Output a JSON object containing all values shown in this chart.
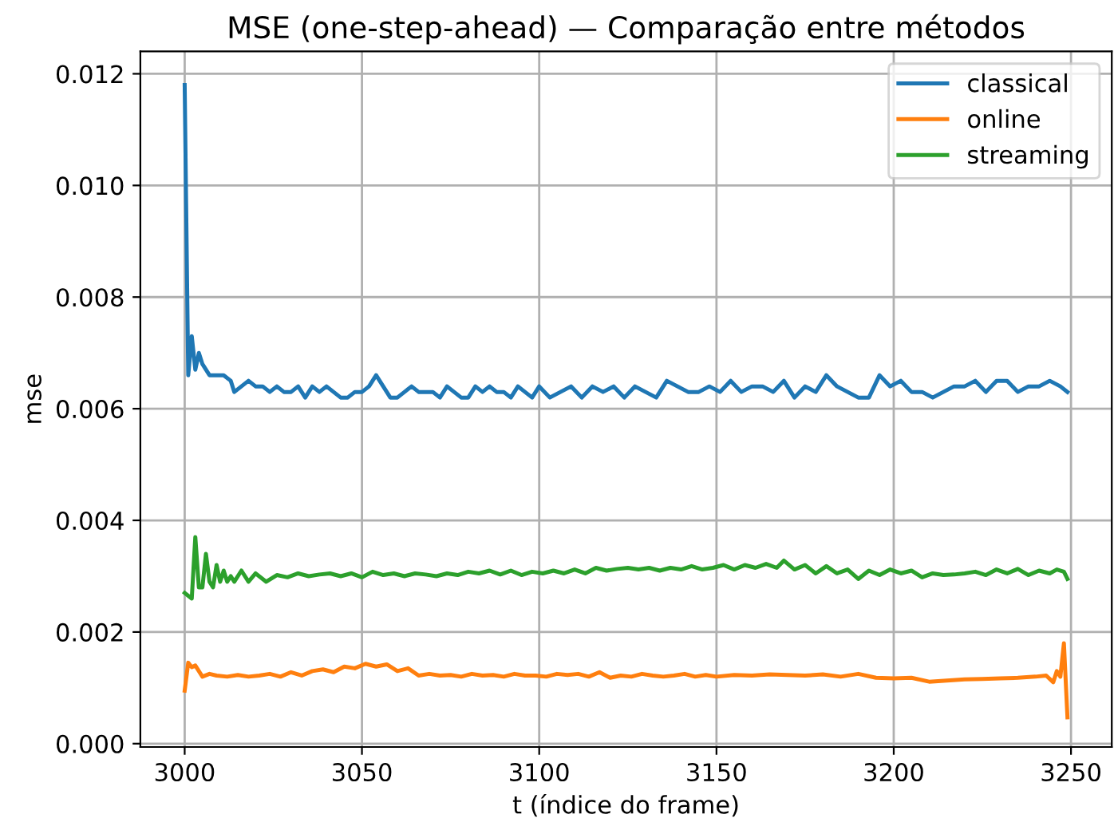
{
  "chart_data": {
    "type": "line",
    "title": "MSE (one-step-ahead) — Comparação entre métodos",
    "xlabel": "t (índice do frame)",
    "ylabel": "mse",
    "xlim": [
      2987.5,
      3261.5
    ],
    "xticks": [
      3000,
      3050,
      3100,
      3150,
      3200,
      3250
    ],
    "ylim": [
      -6e-05,
      0.0124
    ],
    "yticks": [
      {
        "value": 0,
        "label": "0.000"
      },
      {
        "value": 0.002,
        "label": "0.002"
      },
      {
        "value": 0.004,
        "label": "0.004"
      },
      {
        "value": 0.006,
        "label": "0.006"
      },
      {
        "value": 0.008,
        "label": "0.008"
      },
      {
        "value": 0.01,
        "label": "0.010"
      },
      {
        "value": 0.012,
        "label": "0.012"
      }
    ],
    "grid": true,
    "legend": "top right",
    "line_style": "solid",
    "series": [
      {
        "name": "classical",
        "color": "#1f77b4",
        "x": [
          3000,
          3001,
          3002,
          3003,
          3004,
          3005,
          3006,
          3007,
          3009,
          3011,
          3013,
          3014,
          3016,
          3018,
          3020,
          3022,
          3024,
          3026,
          3028,
          3030,
          3032,
          3034,
          3036,
          3038,
          3040,
          3042,
          3044,
          3046,
          3048,
          3050,
          3052,
          3054,
          3056,
          3058,
          3060,
          3062,
          3064,
          3066,
          3068,
          3070,
          3072,
          3074,
          3076,
          3078,
          3080,
          3082,
          3084,
          3086,
          3088,
          3090,
          3092,
          3094,
          3096,
          3098,
          3100,
          3103,
          3106,
          3109,
          3112,
          3115,
          3118,
          3121,
          3124,
          3127,
          3130,
          3133,
          3136,
          3139,
          3142,
          3145,
          3148,
          3151,
          3154,
          3157,
          3160,
          3163,
          3166,
          3169,
          3172,
          3175,
          3178,
          3181,
          3184,
          3187,
          3190,
          3193,
          3196,
          3199,
          3202,
          3205,
          3208,
          3211,
          3214,
          3217,
          3220,
          3223,
          3226,
          3229,
          3232,
          3235,
          3238,
          3241,
          3244,
          3247,
          3249
        ],
        "values": [
          0.0118,
          0.0066,
          0.0073,
          0.0067,
          0.007,
          0.0068,
          0.0067,
          0.0066,
          0.0066,
          0.0066,
          0.0065,
          0.0063,
          0.0064,
          0.0065,
          0.0064,
          0.0064,
          0.0063,
          0.0064,
          0.0063,
          0.0063,
          0.0064,
          0.0062,
          0.0064,
          0.0063,
          0.0064,
          0.0063,
          0.0062,
          0.0062,
          0.0063,
          0.0063,
          0.0064,
          0.0066,
          0.0064,
          0.0062,
          0.0062,
          0.0063,
          0.0064,
          0.0063,
          0.0063,
          0.0063,
          0.0062,
          0.0064,
          0.0063,
          0.0062,
          0.0062,
          0.0064,
          0.0063,
          0.0064,
          0.0063,
          0.0063,
          0.0062,
          0.0064,
          0.0063,
          0.0062,
          0.0064,
          0.0062,
          0.0063,
          0.0064,
          0.0062,
          0.0064,
          0.0063,
          0.0064,
          0.0062,
          0.0064,
          0.0063,
          0.0062,
          0.0065,
          0.0064,
          0.0063,
          0.0063,
          0.0064,
          0.0063,
          0.0065,
          0.0063,
          0.0064,
          0.0064,
          0.0063,
          0.0065,
          0.0062,
          0.0064,
          0.0063,
          0.0066,
          0.0064,
          0.0063,
          0.0062,
          0.0062,
          0.0066,
          0.0064,
          0.0065,
          0.0063,
          0.0063,
          0.0062,
          0.0063,
          0.0064,
          0.0064,
          0.0065,
          0.0063,
          0.0065,
          0.0065,
          0.0063,
          0.0064,
          0.0064,
          0.0065,
          0.0064,
          0.0063
        ]
      },
      {
        "name": "online",
        "color": "#ff7f0e",
        "x": [
          3000,
          3001,
          3002,
          3003,
          3004,
          3005,
          3007,
          3009,
          3012,
          3015,
          3018,
          3021,
          3024,
          3027,
          3030,
          3033,
          3036,
          3039,
          3042,
          3045,
          3048,
          3051,
          3054,
          3057,
          3060,
          3063,
          3066,
          3069,
          3072,
          3075,
          3078,
          3081,
          3084,
          3087,
          3090,
          3093,
          3096,
          3099,
          3102,
          3105,
          3108,
          3111,
          3114,
          3117,
          3120,
          3123,
          3126,
          3129,
          3132,
          3135,
          3138,
          3141,
          3144,
          3147,
          3150,
          3155,
          3160,
          3165,
          3170,
          3175,
          3180,
          3185,
          3190,
          3195,
          3200,
          3205,
          3210,
          3215,
          3220,
          3225,
          3230,
          3235,
          3240,
          3243,
          3245,
          3246,
          3247,
          3248,
          3249
        ],
        "values": [
          0.00095,
          0.00145,
          0.00137,
          0.0014,
          0.0013,
          0.0012,
          0.00125,
          0.00122,
          0.0012,
          0.00123,
          0.0012,
          0.00122,
          0.00125,
          0.0012,
          0.00128,
          0.00122,
          0.0013,
          0.00133,
          0.00128,
          0.00138,
          0.00135,
          0.00143,
          0.00138,
          0.00142,
          0.0013,
          0.00135,
          0.00122,
          0.00125,
          0.00122,
          0.00123,
          0.0012,
          0.00125,
          0.00122,
          0.00123,
          0.0012,
          0.00125,
          0.00122,
          0.00122,
          0.0012,
          0.00125,
          0.00123,
          0.00125,
          0.0012,
          0.00128,
          0.00118,
          0.00122,
          0.0012,
          0.00125,
          0.00122,
          0.0012,
          0.00122,
          0.00125,
          0.0012,
          0.00123,
          0.0012,
          0.00123,
          0.00122,
          0.00124,
          0.00123,
          0.00122,
          0.00124,
          0.0012,
          0.00125,
          0.00118,
          0.00117,
          0.00118,
          0.00111,
          0.00113,
          0.00115,
          0.00116,
          0.00117,
          0.00118,
          0.0012,
          0.00122,
          0.0011,
          0.0013,
          0.0012,
          0.0018,
          0.00047
        ]
      },
      {
        "name": "streaming",
        "color": "#2ca02c",
        "x": [
          3000,
          3001,
          3002,
          3003,
          3004,
          3005,
          3006,
          3007,
          3008,
          3009,
          3010,
          3011,
          3012,
          3013,
          3014,
          3016,
          3018,
          3020,
          3023,
          3026,
          3029,
          3032,
          3035,
          3038,
          3041,
          3044,
          3047,
          3050,
          3053,
          3056,
          3059,
          3062,
          3065,
          3068,
          3071,
          3074,
          3077,
          3080,
          3083,
          3086,
          3089,
          3092,
          3095,
          3098,
          3101,
          3104,
          3107,
          3110,
          3113,
          3116,
          3119,
          3122,
          3125,
          3128,
          3131,
          3134,
          3137,
          3140,
          3143,
          3146,
          3149,
          3152,
          3155,
          3158,
          3161,
          3164,
          3167,
          3169,
          3172,
          3175,
          3178,
          3181,
          3184,
          3187,
          3190,
          3193,
          3196,
          3199,
          3202,
          3205,
          3208,
          3211,
          3214,
          3217,
          3220,
          3223,
          3226,
          3229,
          3232,
          3235,
          3238,
          3241,
          3244,
          3246,
          3248,
          3249
        ],
        "values": [
          0.0027,
          0.00265,
          0.0026,
          0.0037,
          0.0028,
          0.0028,
          0.0034,
          0.0029,
          0.0028,
          0.0032,
          0.0029,
          0.0031,
          0.0029,
          0.003,
          0.0029,
          0.0031,
          0.0029,
          0.00305,
          0.0029,
          0.00302,
          0.00298,
          0.00305,
          0.003,
          0.00303,
          0.00305,
          0.003,
          0.00305,
          0.00298,
          0.00308,
          0.00302,
          0.00305,
          0.003,
          0.00305,
          0.00303,
          0.003,
          0.00305,
          0.00302,
          0.00308,
          0.00305,
          0.0031,
          0.00303,
          0.0031,
          0.00302,
          0.00308,
          0.00305,
          0.0031,
          0.00305,
          0.00312,
          0.00305,
          0.00315,
          0.0031,
          0.00313,
          0.00315,
          0.00312,
          0.00315,
          0.0031,
          0.00315,
          0.00312,
          0.00318,
          0.00312,
          0.00315,
          0.0032,
          0.00312,
          0.0032,
          0.00315,
          0.00322,
          0.00315,
          0.00328,
          0.00312,
          0.0032,
          0.00305,
          0.00318,
          0.00305,
          0.00312,
          0.00295,
          0.0031,
          0.00302,
          0.00312,
          0.00305,
          0.0031,
          0.00298,
          0.00305,
          0.00302,
          0.00303,
          0.00305,
          0.00308,
          0.00302,
          0.00312,
          0.00305,
          0.00313,
          0.00302,
          0.0031,
          0.00305,
          0.00312,
          0.00308,
          0.00295
        ]
      }
    ]
  }
}
